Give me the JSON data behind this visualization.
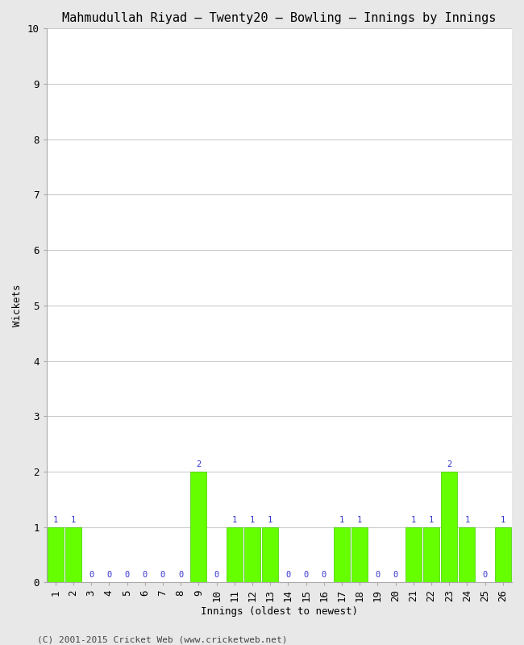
{
  "title": "Mahmudullah Riyad – Twenty20 – Bowling – Innings by Innings",
  "xlabel": "Innings (oldest to newest)",
  "ylabel": "Wickets",
  "background_color": "#e8e8e8",
  "plot_background": "#ffffff",
  "bar_color": "#66ff00",
  "bar_edge_color": "#44cc00",
  "label_color": "#3333cc",
  "ylim": [
    0,
    10
  ],
  "yticks": [
    0,
    1,
    2,
    3,
    4,
    5,
    6,
    7,
    8,
    9,
    10
  ],
  "innings": [
    1,
    2,
    3,
    4,
    5,
    6,
    7,
    8,
    9,
    10,
    11,
    12,
    13,
    14,
    15,
    16,
    17,
    18,
    19,
    20,
    21,
    22,
    23,
    24,
    25,
    26
  ],
  "wickets": [
    1,
    1,
    0,
    0,
    0,
    0,
    0,
    0,
    2,
    0,
    1,
    1,
    1,
    0,
    0,
    0,
    1,
    1,
    0,
    0,
    1,
    1,
    2,
    1,
    0,
    1
  ],
  "footer": "(C) 2001-2015 Cricket Web (www.cricketweb.net)",
  "title_fontsize": 11,
  "axis_label_fontsize": 9,
  "tick_fontsize": 9,
  "bar_label_fontsize": 7.5,
  "footer_fontsize": 8
}
